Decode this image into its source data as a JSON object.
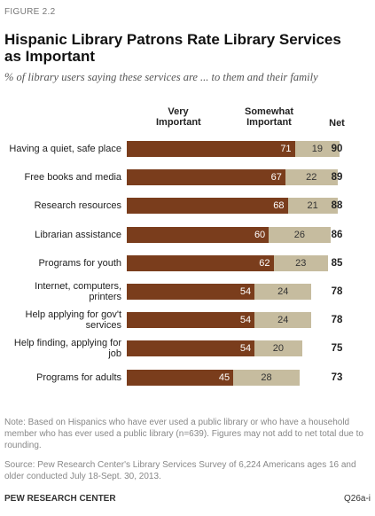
{
  "figure_label": "FIGURE 2.2",
  "title": "Hispanic Library Patrons Rate Library Services as Important",
  "subtitle": "% of library users saying these services are ... to them and their family",
  "column_headers": {
    "very": "Very Important",
    "somewhat": "Somewhat Important",
    "net": "Net"
  },
  "chart_data": {
    "type": "bar",
    "orientation": "horizontal",
    "stacked": true,
    "title": "Hispanic Library Patrons Rate Library Services as Important",
    "subtitle": "% of library users saying these services are ... to them and their family",
    "categories": [
      "Having a quiet, safe place",
      "Free books and media",
      "Research resources",
      "Librarian assistance",
      "Programs for youth",
      "Internet, computers, printers",
      "Help applying for gov't services",
      "Help finding, applying for job",
      "Programs for adults"
    ],
    "series": [
      {
        "name": "Very Important",
        "color": "#7a3d1c",
        "values": [
          71,
          67,
          68,
          60,
          62,
          54,
          54,
          54,
          45
        ]
      },
      {
        "name": "Somewhat Important",
        "color": "#c6bc9f",
        "values": [
          19,
          22,
          21,
          26,
          23,
          24,
          24,
          20,
          28
        ]
      }
    ],
    "net": [
      90,
      89,
      88,
      86,
      85,
      78,
      78,
      75,
      73
    ]
  },
  "note": "Note: Based on Hispanics who have ever used a public library or who have a household member who has ever used a public library (n=639). Figures may not add to net total due to rounding.",
  "source": "Source: Pew Research Center's Library Services Survey of 6,224 Americans ages 16 and older conducted July 18-Sept. 30, 2013.",
  "footer": {
    "org": "PEW RESEARCH CENTER",
    "code": "Q26a-i"
  }
}
